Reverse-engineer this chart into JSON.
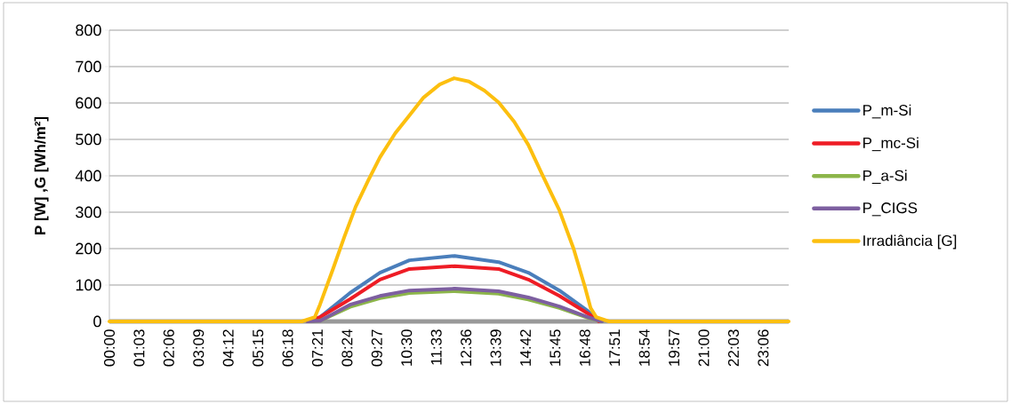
{
  "chart_data": {
    "type": "line",
    "ylabel": "P [W] ,G [Wh/m²]",
    "xlim": [
      0,
      24
    ],
    "ylim": [
      0,
      800
    ],
    "yticks": [
      0,
      100,
      200,
      300,
      400,
      500,
      600,
      700,
      800
    ],
    "xticks": [
      {
        "value": 0,
        "label": "00:00"
      },
      {
        "value": 1.05,
        "label": "01:03"
      },
      {
        "value": 2.1,
        "label": "02:06"
      },
      {
        "value": 3.15,
        "label": "03:09"
      },
      {
        "value": 4.2,
        "label": "04:12"
      },
      {
        "value": 5.25,
        "label": "05:15"
      },
      {
        "value": 6.3,
        "label": "06:18"
      },
      {
        "value": 7.35,
        "label": "07:21"
      },
      {
        "value": 8.4,
        "label": "08:24"
      },
      {
        "value": 9.45,
        "label": "09:27"
      },
      {
        "value": 10.5,
        "label": "10:30"
      },
      {
        "value": 11.55,
        "label": "11:33"
      },
      {
        "value": 12.6,
        "label": "12:36"
      },
      {
        "value": 13.65,
        "label": "13:39"
      },
      {
        "value": 14.7,
        "label": "14:42"
      },
      {
        "value": 15.75,
        "label": "15:45"
      },
      {
        "value": 16.8,
        "label": "16:48"
      },
      {
        "value": 17.85,
        "label": "17:51"
      },
      {
        "value": 18.9,
        "label": "18:54"
      },
      {
        "value": 19.95,
        "label": "19:57"
      },
      {
        "value": 21,
        "label": "21:00"
      },
      {
        "value": 22.05,
        "label": "22:03"
      },
      {
        "value": 23.1,
        "label": "23:06"
      }
    ],
    "grid": "y",
    "legend": "right",
    "marker": "none",
    "line_style": "solid",
    "series": [
      {
        "name": "P_m-Si",
        "color": "#4a7ebb",
        "x": [
          7.0,
          7.45,
          8.5,
          9.56,
          10.6,
          12.2,
          13.75,
          14.8,
          15.9,
          16.9,
          17.2,
          17.4
        ],
        "values": [
          0,
          12,
          78,
          134,
          168,
          180,
          163,
          134,
          85,
          29,
          5,
          0
        ]
      },
      {
        "name": "P_mc-Si",
        "color": "#ee1c25",
        "x": [
          7.0,
          7.45,
          8.5,
          9.56,
          10.6,
          12.2,
          13.75,
          14.8,
          15.9,
          16.9,
          17.3
        ],
        "values": [
          0,
          12,
          61,
          115,
          144,
          152,
          144,
          115,
          70,
          22,
          0
        ]
      },
      {
        "name": "P_a-Si",
        "color": "#8cb54a",
        "x": [
          7.0,
          7.45,
          8.5,
          9.56,
          10.6,
          12.2,
          13.75,
          14.8,
          15.9,
          16.9,
          17.4
        ],
        "values": [
          0,
          2,
          40,
          64,
          78,
          83,
          76,
          60,
          37,
          10,
          0
        ]
      },
      {
        "name": "P_CIGS",
        "color": "#7d5fa0",
        "x": [
          7.0,
          7.45,
          8.5,
          9.56,
          10.6,
          12.2,
          13.75,
          14.8,
          15.9,
          16.9,
          17.4
        ],
        "values": [
          0,
          2,
          46,
          70,
          85,
          90,
          83,
          66,
          41,
          12,
          0
        ]
      },
      {
        "name": "Irradiância [G]",
        "color": "#fcbf0f",
        "x": [
          0,
          6.8,
          7.26,
          7.44,
          7.9,
          8.3,
          8.7,
          9.15,
          9.56,
          10.1,
          10.6,
          11.1,
          11.67,
          12.18,
          12.7,
          13.25,
          13.75,
          14.3,
          14.8,
          15.3,
          15.9,
          16.4,
          16.8,
          17.0,
          17.2,
          17.65,
          24
        ],
        "values": [
          0,
          0,
          12,
          46,
          144,
          232,
          315,
          388,
          451,
          517,
          566,
          615,
          651,
          668,
          659,
          634,
          602,
          549,
          485,
          402,
          305,
          200,
          95,
          37,
          12,
          0,
          0
        ]
      }
    ]
  }
}
